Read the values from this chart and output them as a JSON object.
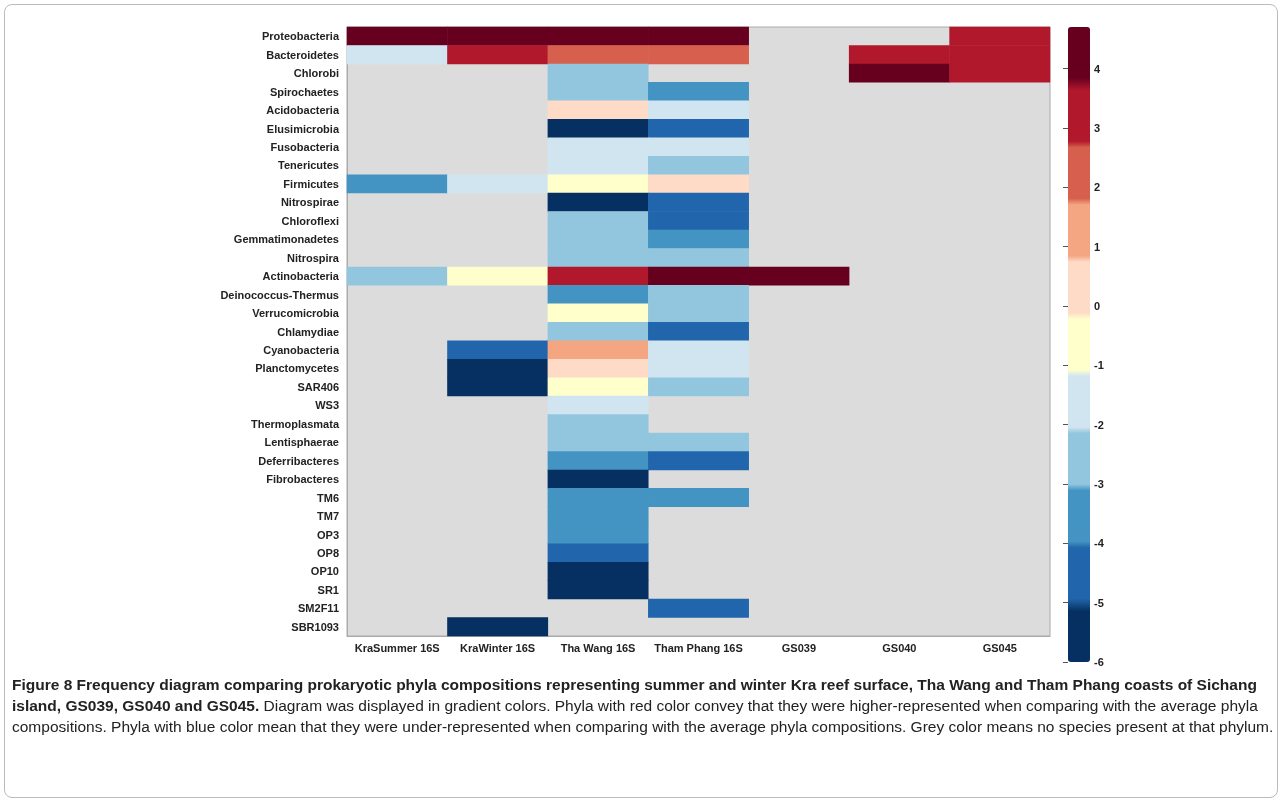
{
  "chart_data": {
    "type": "heatmap",
    "title": "Figure 8 Frequency diagram comparing prokaryotic phyla compositions representing summer and winter Kra reef surface, Tha Wang and Tham Phang coasts of Sichang island, GS039, GS040 and GS045.",
    "annotations": [
      "Diagram was displayed in gradient colors. Phyla with red color convey that they were higher-represented when comparing with the average phyla compositions. Phyla with blue color mean that they were under-represented when comparing with the average phyla compositions. Grey color means no species present at that phylum."
    ],
    "categories": [
      "KraSummer 16S",
      "KraWinter 16S",
      "Tha Wang 16S",
      "Tham Phang 16S",
      "GS039",
      "GS040",
      "GS045"
    ],
    "y_categories": [
      "Proteobacteria",
      "Bacteroidetes",
      "Chlorobi",
      "Spirochaetes",
      "Acidobacteria",
      "Elusimicrobia",
      "Fusobacteria",
      "Tenericutes",
      "Firmicutes",
      "Nitrospirae",
      "Chloroflexi",
      "Gemmatimonadetes",
      "Nitrospira",
      "Actinobacteria",
      "Deinococcus-Thermus",
      "Verrucomicrobia",
      "Chlamydiae",
      "Cyanobacteria",
      "Planctomycetes",
      "SAR406",
      "WS3",
      "Thermoplasmata",
      "Lentisphaerae",
      "Deferribacteres",
      "Fibrobacteres",
      "TM6",
      "TM7",
      "OP3",
      "OP8",
      "OP10",
      "SR1",
      "SM2F11",
      "SBR1093"
    ],
    "cells": [
      [
        4.2,
        4.2,
        4.2,
        4.2,
        null,
        null,
        3.2
      ],
      [
        -1.6,
        3.2,
        2.3,
        2.3,
        null,
        3.2,
        3.2
      ],
      [
        null,
        null,
        -2.6,
        null,
        null,
        4.2,
        3.2
      ],
      [
        null,
        null,
        -2.6,
        -3.6,
        null,
        null,
        null
      ],
      [
        null,
        null,
        0.3,
        -1.6,
        null,
        null,
        null
      ],
      [
        null,
        null,
        -5.5,
        -4.5,
        null,
        null,
        null
      ],
      [
        null,
        null,
        -1.6,
        -1.6,
        null,
        null,
        null
      ],
      [
        null,
        null,
        -1.6,
        -2.6,
        null,
        null,
        null
      ],
      [
        -3.6,
        -1.6,
        -0.6,
        0.3,
        null,
        null,
        null
      ],
      [
        null,
        null,
        -5.5,
        -4.5,
        null,
        null,
        null
      ],
      [
        null,
        null,
        -2.6,
        -4.5,
        null,
        null,
        null
      ],
      [
        null,
        null,
        -2.6,
        -3.6,
        null,
        null,
        null
      ],
      [
        null,
        null,
        -2.6,
        -2.6,
        null,
        null,
        null
      ],
      [
        -2.6,
        -0.6,
        3.2,
        4.2,
        4.2,
        null,
        null
      ],
      [
        null,
        null,
        -3.6,
        -2.6,
        null,
        null,
        null
      ],
      [
        null,
        null,
        -0.6,
        -2.6,
        null,
        null,
        null
      ],
      [
        null,
        null,
        -2.6,
        -4.5,
        null,
        null,
        null
      ],
      [
        null,
        -4.5,
        1.3,
        -1.6,
        null,
        null,
        null
      ],
      [
        null,
        -5.5,
        0.3,
        -1.6,
        null,
        null,
        null
      ],
      [
        null,
        -5.5,
        -0.6,
        -2.6,
        null,
        null,
        null
      ],
      [
        null,
        null,
        -1.6,
        null,
        null,
        null,
        null
      ],
      [
        null,
        null,
        -2.6,
        null,
        null,
        null,
        null
      ],
      [
        null,
        null,
        -2.6,
        -2.6,
        null,
        null,
        null
      ],
      [
        null,
        null,
        -3.6,
        -4.5,
        null,
        null,
        null
      ],
      [
        null,
        null,
        -5.5,
        null,
        null,
        null,
        null
      ],
      [
        null,
        null,
        -3.6,
        -3.6,
        null,
        null,
        null
      ],
      [
        null,
        null,
        -3.6,
        null,
        null,
        null,
        null
      ],
      [
        null,
        null,
        -3.6,
        null,
        null,
        null,
        null
      ],
      [
        null,
        null,
        -4.5,
        null,
        null,
        null,
        null
      ],
      [
        null,
        null,
        -5.5,
        null,
        null,
        null,
        null
      ],
      [
        null,
        null,
        -5.5,
        null,
        null,
        null,
        null
      ],
      [
        null,
        null,
        null,
        -4.5,
        null,
        null,
        null
      ],
      [
        null,
        -5.5,
        null,
        null,
        null,
        null,
        null
      ]
    ],
    "colors": [
      "#053061",
      "#2166ac",
      "#4393c3",
      "#92c5de",
      "#d1e5f0",
      "#ffffcc",
      "#fddbc7",
      "#f4a582",
      "#d6604d",
      "#b2182b",
      "#67001f"
    ],
    "clim": [
      -6,
      4.7
    ],
    "cticks": [
      -6,
      -5,
      -4,
      -3,
      -2,
      -1,
      0,
      1,
      2,
      3,
      4
    ]
  }
}
